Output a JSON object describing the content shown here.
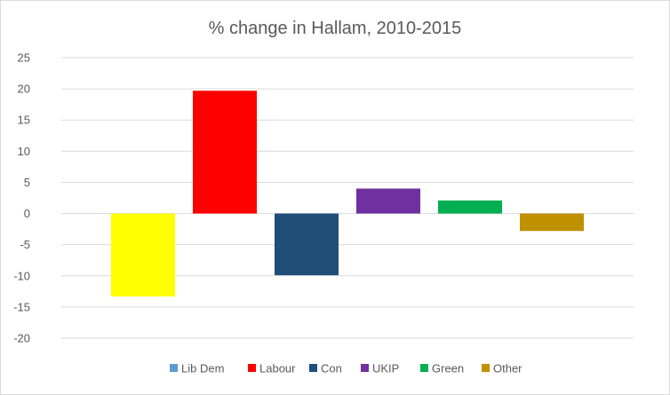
{
  "chart_data": {
    "type": "bar",
    "title": "% change in Hallam, 2010-2015",
    "xlabel": "",
    "ylabel": "",
    "categories": [
      "Lib Dem",
      "Labour",
      "Con",
      "UKIP",
      "Green",
      "Other"
    ],
    "values": [
      -13.3,
      19.7,
      -9.9,
      4.0,
      2.1,
      -2.8
    ],
    "colors": [
      "#ffff00",
      "#ff0000",
      "#1f4e79",
      "#7030a0",
      "#00b050",
      "#bf9000"
    ],
    "legend": [
      {
        "label": "Lib Dem",
        "color": "#5b9bd5"
      },
      {
        "label": "Labour",
        "color": "#ff0000"
      },
      {
        "label": "Con",
        "color": "#1f4e79"
      },
      {
        "label": "UKIP",
        "color": "#7030a0"
      },
      {
        "label": "Green",
        "color": "#00b050"
      },
      {
        "label": "Other",
        "color": "#bf9000"
      }
    ],
    "ylim": [
      -20,
      25
    ],
    "yticks": [
      "25",
      "20",
      "15",
      "10",
      "5",
      "0",
      "-5",
      "-10",
      "-15",
      "-20"
    ],
    "grid": true,
    "legend_position": "bottom"
  }
}
